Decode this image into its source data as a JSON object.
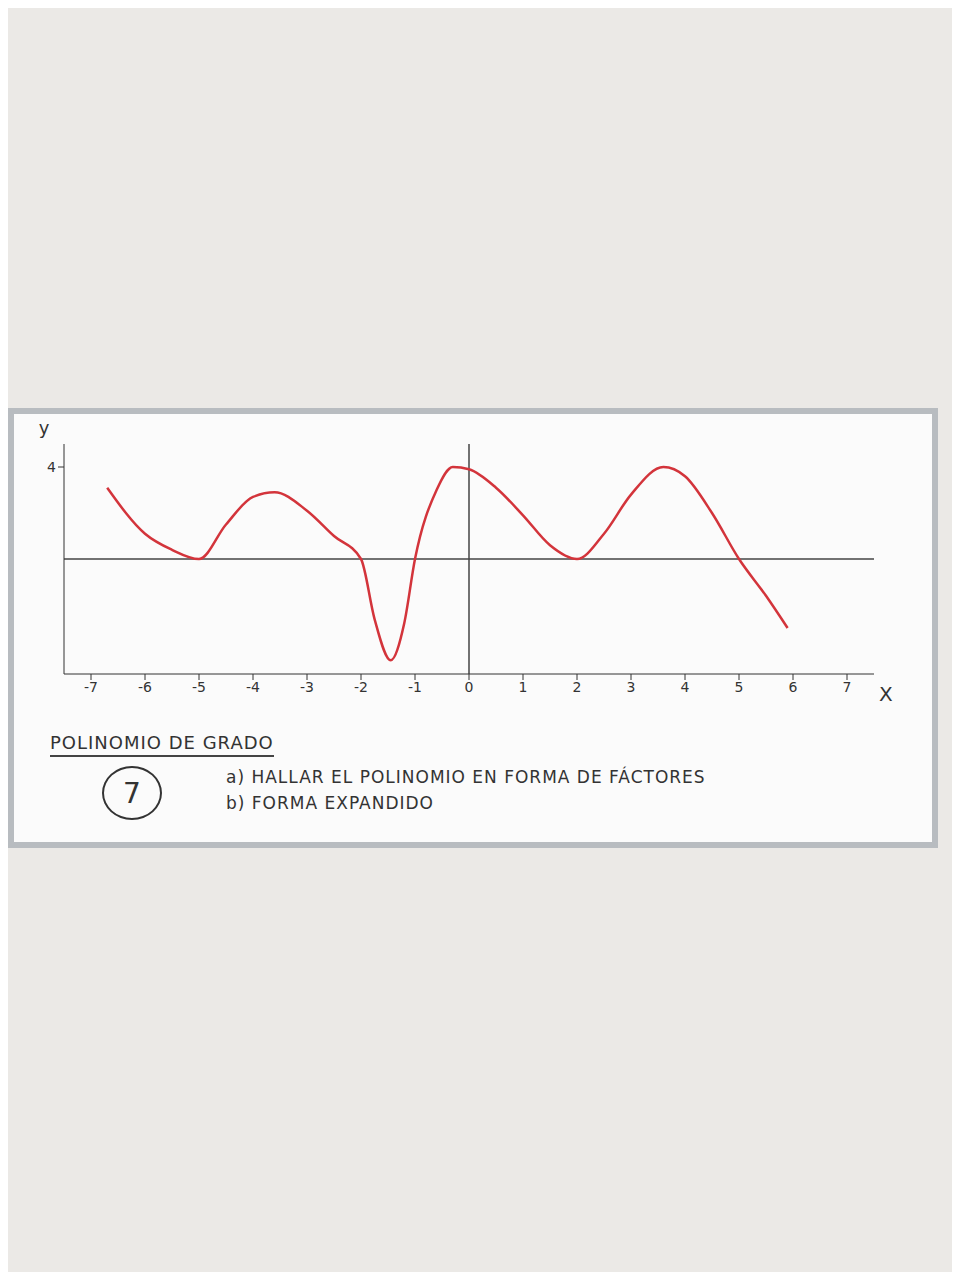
{
  "chart_data": {
    "type": "line",
    "title": "POLINOMIO DE GRADO",
    "degree": "7",
    "tasks": [
      "a) HALLAR EL POLINOMIO EN FORMA DE FÁCTORES",
      "b) FORMA EXPANDIDO"
    ],
    "x_label": "X",
    "y_label": "y",
    "x": [
      -6.7,
      -6,
      -5.5,
      -5,
      -4.5,
      -4,
      -3.6,
      -3,
      -2.5,
      -2,
      -1.75,
      -1.45,
      -1.2,
      -1,
      -0.6,
      -0.3,
      0,
      0.5,
      1,
      1.5,
      2,
      2.5,
      3,
      3.6,
      4,
      4.5,
      5,
      5.5,
      5.9
    ],
    "values": [
      3.1,
      1.1,
      0.4,
      0,
      1.5,
      2.7,
      2.9,
      2.1,
      1,
      0,
      -2.6,
      -4.4,
      -2.8,
      0,
      3,
      4,
      3.9,
      3.1,
      1.9,
      0.6,
      0,
      1.1,
      2.8,
      4,
      3.6,
      2,
      0,
      -1.6,
      -3
    ],
    "color": "#d3343b",
    "xlim": [
      -7.5,
      7.5
    ],
    "xticks": [
      -7,
      -6,
      -5,
      -4,
      -3,
      -2,
      -1,
      0,
      1,
      2,
      3,
      4,
      5,
      6,
      7
    ],
    "ylim": [
      -5,
      5
    ],
    "yticks": [
      4
    ],
    "grid": false
  }
}
